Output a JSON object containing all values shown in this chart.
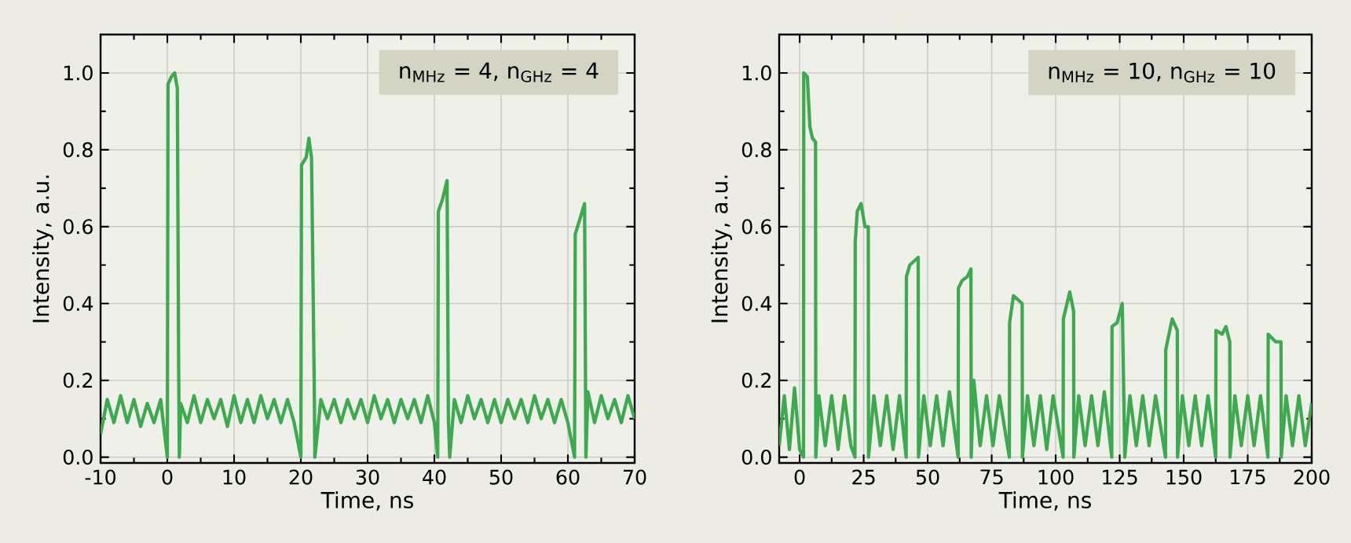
{
  "chart_data": [
    {
      "type": "line",
      "xlabel": "Time, ns",
      "ylabel": "Intensity, a.u.",
      "xlim": [
        -10,
        70
      ],
      "ylim": [
        -0.015,
        1.1
      ],
      "xticks": [
        -10,
        0,
        10,
        20,
        30,
        40,
        50,
        60,
        70
      ],
      "yticks": [
        {
          "value": 0,
          "label": "0.0"
        },
        {
          "value": 0.2,
          "label": "0.2"
        },
        {
          "value": 0.4,
          "label": "0.4"
        },
        {
          "value": 0.6,
          "label": "0.6"
        },
        {
          "value": 0.8,
          "label": "0.8"
        },
        {
          "value": 1.0,
          "label": "1.0"
        }
      ],
      "grid": true,
      "annotations": [
        "n$_{MHz}$ = 4, n$_{GHz}$ = 4"
      ],
      "series": [
        {
          "color": "#3daa4f",
          "x": [
            -10,
            -9,
            -8,
            -7,
            -6,
            -5,
            -4,
            -3,
            -2,
            -1,
            0,
            0.1,
            0.6,
            1.1,
            1.5,
            1.7,
            1.8,
            2,
            3,
            4,
            5,
            6,
            7,
            8,
            9,
            10,
            11,
            12,
            13,
            14,
            15,
            16,
            17,
            18,
            19,
            20,
            20.1,
            20.8,
            21.2,
            21.6,
            22,
            22.1,
            23,
            24,
            25,
            26,
            27,
            28,
            29,
            30,
            31,
            32,
            33,
            34,
            35,
            36,
            37,
            38,
            39,
            40,
            40.5,
            40.6,
            41.2,
            41.9,
            42.1,
            42.3,
            43,
            44,
            45,
            46,
            47,
            48,
            49,
            50,
            51,
            52,
            53,
            54,
            55,
            56,
            57,
            58,
            59,
            60,
            61,
            61.1,
            61.8,
            62.5,
            62.7,
            63,
            64,
            65,
            66,
            67,
            68,
            69,
            70
          ],
          "values": [
            0.06,
            0.15,
            0.09,
            0.16,
            0.09,
            0.15,
            0.08,
            0.14,
            0.09,
            0.15,
            0.0,
            0.97,
            0.99,
            1.0,
            0.96,
            0.22,
            0.0,
            0.14,
            0.09,
            0.16,
            0.09,
            0.15,
            0.1,
            0.15,
            0.08,
            0.16,
            0.09,
            0.15,
            0.09,
            0.16,
            0.1,
            0.15,
            0.09,
            0.15,
            0.09,
            0.0,
            0.76,
            0.78,
            0.83,
            0.78,
            0.2,
            0.0,
            0.15,
            0.1,
            0.15,
            0.09,
            0.15,
            0.1,
            0.15,
            0.09,
            0.16,
            0.1,
            0.15,
            0.09,
            0.15,
            0.1,
            0.15,
            0.09,
            0.16,
            0.09,
            0.0,
            0.64,
            0.67,
            0.72,
            0.1,
            0.0,
            0.15,
            0.09,
            0.16,
            0.1,
            0.15,
            0.09,
            0.15,
            0.09,
            0.15,
            0.1,
            0.15,
            0.09,
            0.16,
            0.1,
            0.15,
            0.09,
            0.15,
            0.09,
            0.0,
            0.58,
            0.62,
            0.66,
            0.0,
            0.17,
            0.09,
            0.16,
            0.1,
            0.15,
            0.09,
            0.16,
            0.1
          ]
        }
      ]
    },
    {
      "type": "line",
      "xlabel": "Time, ns",
      "ylabel": "Intensity, a.u.",
      "xlim": [
        -8,
        200
      ],
      "ylim": [
        -0.015,
        1.1
      ],
      "xticks": [
        0,
        25,
        50,
        75,
        100,
        125,
        150,
        175,
        200
      ],
      "yticks": [
        {
          "value": 0,
          "label": "0.0"
        },
        {
          "value": 0.2,
          "label": "0.2"
        },
        {
          "value": 0.4,
          "label": "0.4"
        },
        {
          "value": 0.6,
          "label": "0.6"
        },
        {
          "value": 0.8,
          "label": "0.8"
        },
        {
          "value": 1.0,
          "label": "1.0"
        }
      ],
      "grid": true,
      "annotations": [
        "n$_{MHz}$ = 10, n$_{GHz}$ = 10"
      ],
      "series": [
        {
          "color": "#3daa4f",
          "x": [
            -8,
            -6,
            -4,
            -2,
            0,
            1.5,
            1.6,
            3,
            4,
            5,
            6.2,
            6.3,
            7.5,
            10,
            12.5,
            15,
            17.5,
            20,
            21.6,
            21.7,
            22.5,
            24,
            25.5,
            26.8,
            26.9,
            29,
            31.5,
            34,
            36.5,
            39,
            41.6,
            41.7,
            43,
            46.3,
            46.4,
            48.5,
            51,
            53.5,
            56,
            58.5,
            61.9,
            62,
            63.5,
            65.5,
            66.9,
            67,
            68,
            70.5,
            73,
            75.5,
            78,
            81.9,
            82,
            83.5,
            86.9,
            87,
            89,
            91.5,
            94,
            96.5,
            99,
            102.9,
            103,
            105.5,
            107,
            107.1,
            109,
            111.5,
            114,
            116.5,
            119,
            121.9,
            122,
            124,
            126,
            127,
            129,
            131.5,
            134,
            136.5,
            139,
            142.9,
            143,
            145.5,
            147.5,
            147.6,
            149.5,
            152,
            154.5,
            157,
            159.5,
            162.5,
            162.6,
            165,
            166.5,
            168,
            168.1,
            170,
            172.5,
            175,
            177.5,
            180,
            182.9,
            183,
            186,
            188,
            188.1,
            190,
            192.5,
            195,
            197.5,
            200
          ],
          "values": [
            0.03,
            0.16,
            0.02,
            0.18,
            0.02,
            0.0,
            1.0,
            0.99,
            0.86,
            0.83,
            0.82,
            0.0,
            0.16,
            0.03,
            0.16,
            0.02,
            0.16,
            0.03,
            0.0,
            0.56,
            0.64,
            0.66,
            0.6,
            0.6,
            0.0,
            0.16,
            0.03,
            0.16,
            0.02,
            0.16,
            0.0,
            0.47,
            0.5,
            0.52,
            0.0,
            0.16,
            0.03,
            0.16,
            0.03,
            0.17,
            0.0,
            0.44,
            0.46,
            0.47,
            0.49,
            0.0,
            0.2,
            0.03,
            0.16,
            0.03,
            0.16,
            0.0,
            0.35,
            0.42,
            0.4,
            0.0,
            0.16,
            0.03,
            0.16,
            0.02,
            0.16,
            0.0,
            0.36,
            0.43,
            0.38,
            0.0,
            0.16,
            0.03,
            0.16,
            0.03,
            0.17,
            0.0,
            0.34,
            0.35,
            0.4,
            0.0,
            0.16,
            0.03,
            0.16,
            0.03,
            0.16,
            0.0,
            0.28,
            0.36,
            0.33,
            0.0,
            0.16,
            0.03,
            0.16,
            0.03,
            0.16,
            0.0,
            0.33,
            0.32,
            0.34,
            0.3,
            0.0,
            0.16,
            0.03,
            0.16,
            0.03,
            0.16,
            0.0,
            0.32,
            0.3,
            0.3,
            0.0,
            0.16,
            0.03,
            0.16,
            0.03,
            0.14
          ]
        }
      ]
    }
  ]
}
